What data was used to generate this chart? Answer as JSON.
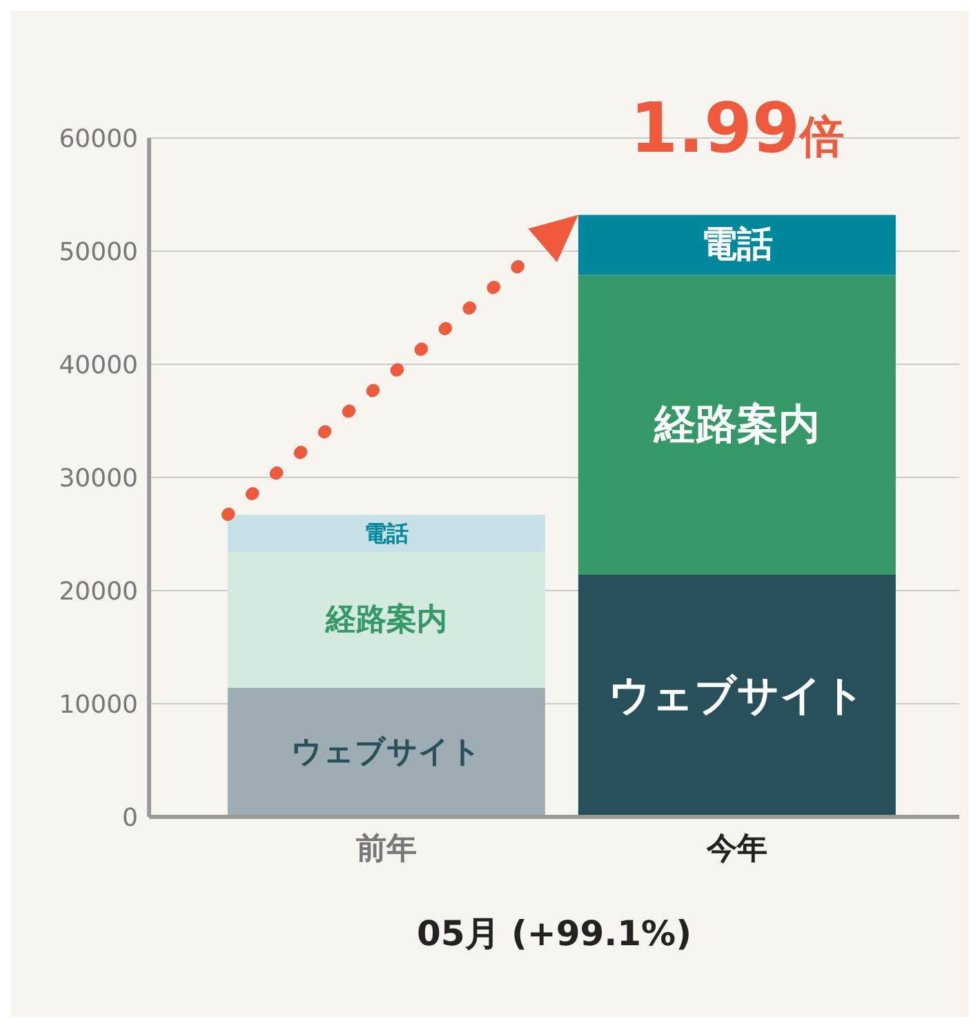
{
  "chart_data": {
    "type": "bar",
    "stacked": true,
    "xlabel": "05月 (+99.1%)",
    "categories": [
      "前年",
      "今年"
    ],
    "series": [
      {
        "name": "ウェブサイト",
        "colors": [
          "#9eadb3",
          "#27505b"
        ],
        "values": [
          11400,
          21400
        ]
      },
      {
        "name": "経路案内",
        "colors": [
          "#d3eadf",
          "#349967"
        ],
        "values": [
          12000,
          26500
        ]
      },
      {
        "name": "電話",
        "colors": [
          "#c6e2e7",
          "#00879b"
        ],
        "values": [
          3300,
          5300
        ]
      }
    ],
    "ylim": [
      0,
      60000
    ],
    "yticks": [
      0,
      10000,
      20000,
      30000,
      40000,
      50000,
      60000
    ],
    "grid": "y",
    "legend": false,
    "annotations": [
      "1.99倍"
    ]
  }
}
